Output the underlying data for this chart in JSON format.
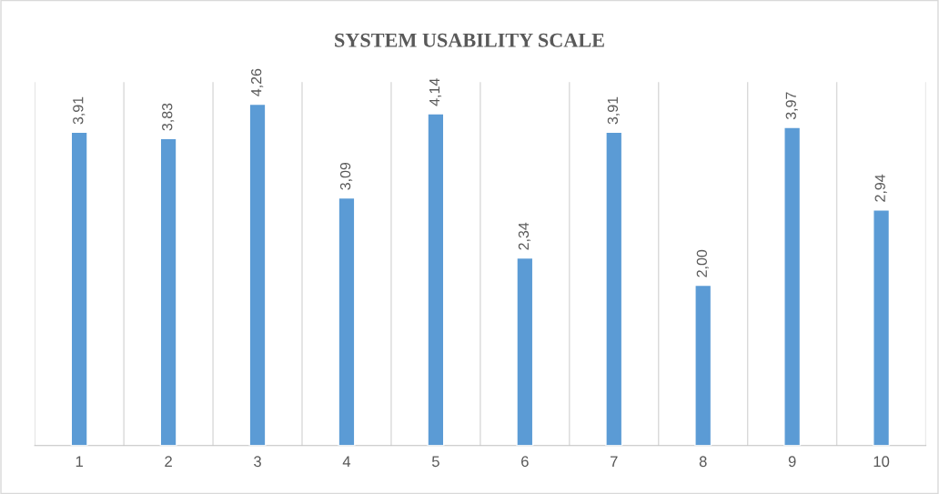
{
  "chart_data": {
    "type": "bar",
    "title": "SYSTEM USABILITY SCALE",
    "categories": [
      "1",
      "2",
      "3",
      "4",
      "5",
      "6",
      "7",
      "8",
      "9",
      "10"
    ],
    "values": [
      3.91,
      3.83,
      4.26,
      3.09,
      4.14,
      2.34,
      3.91,
      2.0,
      3.97,
      2.94
    ],
    "value_labels": [
      "3,91",
      "3,83",
      "4,26",
      "3,09",
      "4,14",
      "2,34",
      "3,91",
      "2,00",
      "3,97",
      "2,94"
    ],
    "color": "#5b9bd5",
    "grid": "x",
    "tick_labels": "x",
    "legend": false
  }
}
